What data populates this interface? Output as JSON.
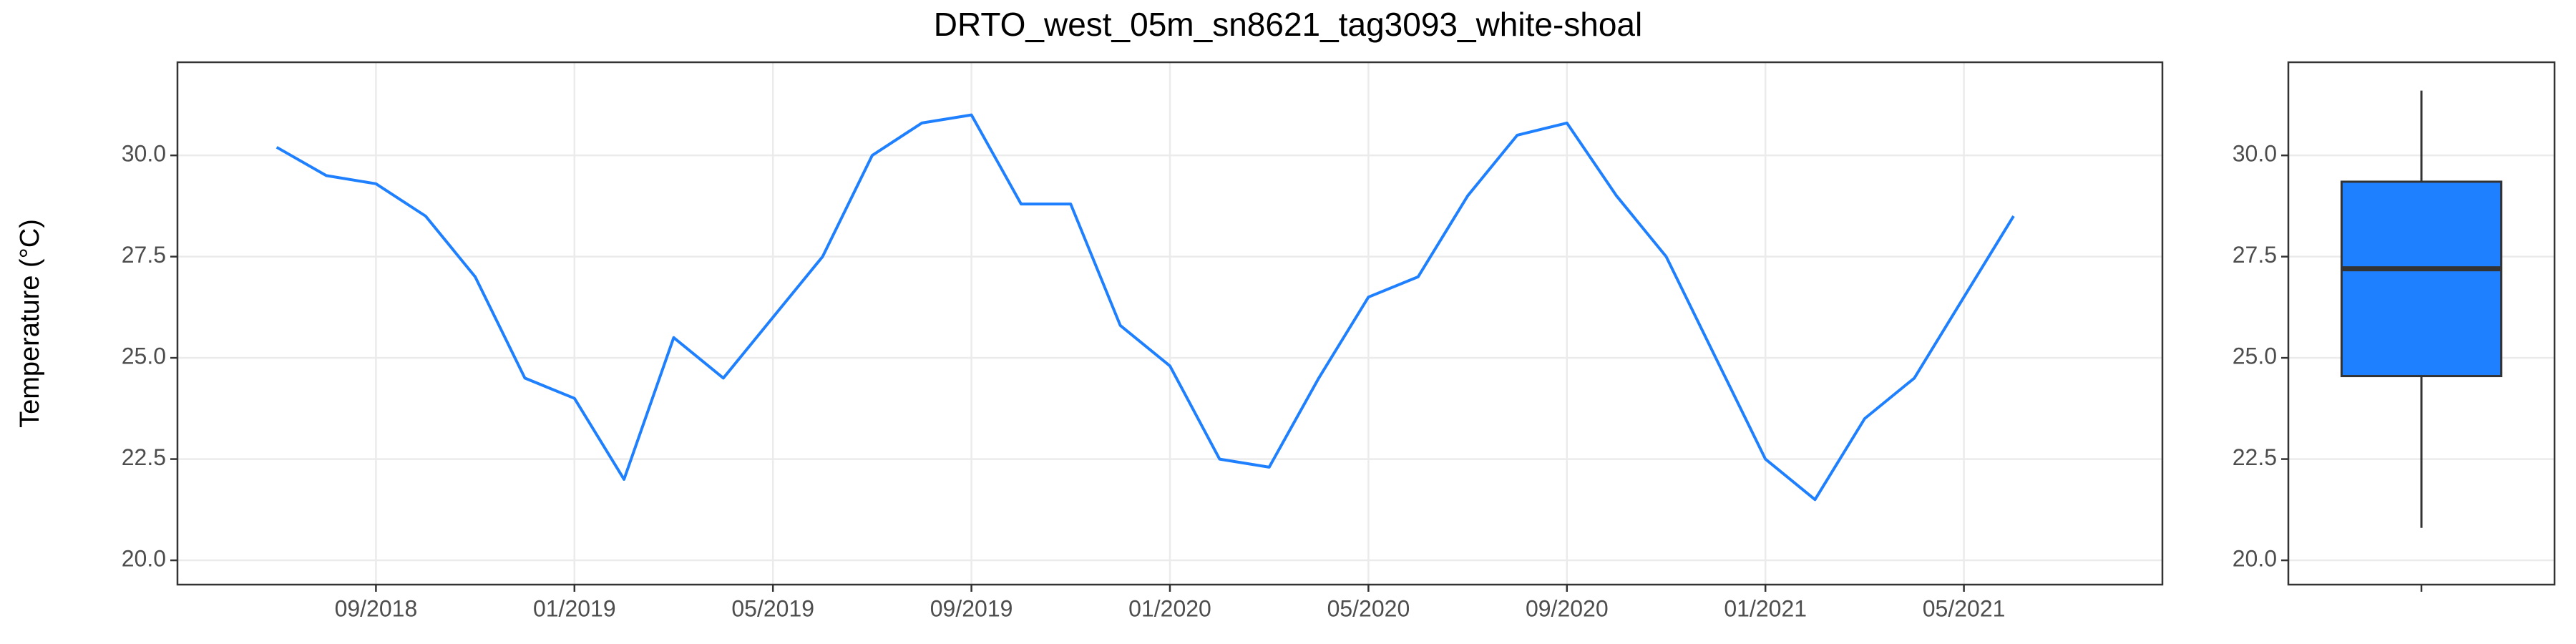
{
  "chart_data": [
    {
      "type": "line",
      "title": "DRTO_west_05m_sn8621_tag3093_white-shoal",
      "ylabel": "Temperature (°C)",
      "x": [
        "2018-07",
        "2018-08",
        "2018-09",
        "2018-10",
        "2018-11",
        "2018-12",
        "2019-01",
        "2019-02",
        "2019-03",
        "2019-04",
        "2019-05",
        "2019-06",
        "2019-07",
        "2019-08",
        "2019-09",
        "2019-10",
        "2019-11",
        "2019-12",
        "2020-01",
        "2020-02",
        "2020-03",
        "2020-04",
        "2020-05",
        "2020-06",
        "2020-07",
        "2020-08",
        "2020-09",
        "2020-10",
        "2020-11",
        "2020-12",
        "2021-01",
        "2021-02",
        "2021-03",
        "2021-04",
        "2021-05",
        "2021-06"
      ],
      "series": [
        {
          "color": "#1f80ff",
          "values": [
            30.2,
            29.5,
            29.3,
            28.5,
            27.0,
            24.5,
            24.0,
            22.0,
            25.5,
            24.5,
            26.0,
            27.5,
            30.0,
            30.8,
            31.0,
            28.8,
            28.8,
            25.8,
            24.8,
            22.5,
            22.3,
            24.5,
            26.5,
            27.0,
            29.0,
            30.5,
            30.8,
            29.0,
            27.5,
            25.0,
            22.5,
            21.5,
            23.5,
            24.5,
            26.5,
            28.5
          ]
        }
      ],
      "xlim": [
        "2018-05",
        "2021-09"
      ],
      "xticks": [
        {
          "value": "2018-09",
          "label": "09/2018"
        },
        {
          "value": "2019-01",
          "label": "01/2019"
        },
        {
          "value": "2019-05",
          "label": "05/2019"
        },
        {
          "value": "2019-09",
          "label": "09/2019"
        },
        {
          "value": "2020-01",
          "label": "01/2020"
        },
        {
          "value": "2020-05",
          "label": "05/2020"
        },
        {
          "value": "2020-09",
          "label": "09/2020"
        },
        {
          "value": "2021-01",
          "label": "01/2021"
        },
        {
          "value": "2021-05",
          "label": "05/2021"
        }
      ],
      "ylim": [
        19.4,
        32.3
      ],
      "yticks": [
        {
          "value": 20,
          "label": "20.0"
        },
        {
          "value": 22.5,
          "label": "22.5"
        },
        {
          "value": 25,
          "label": "25.0"
        },
        {
          "value": 27.5,
          "label": "27.5"
        },
        {
          "value": 30,
          "label": "30.0"
        }
      ],
      "grid": true
    },
    {
      "type": "box",
      "color": "#1f80ff",
      "stats": {
        "min": 20.8,
        "q1": 24.55,
        "median": 27.2,
        "q3": 29.35,
        "max": 31.6
      },
      "ylim": [
        19.4,
        32.3
      ],
      "yticks": [
        {
          "value": 20,
          "label": "20.0"
        },
        {
          "value": 22.5,
          "label": "22.5"
        },
        {
          "value": 25,
          "label": "25.0"
        },
        {
          "value": 27.5,
          "label": "27.5"
        },
        {
          "value": 30,
          "label": "30.0"
        }
      ],
      "grid": true
    }
  ]
}
